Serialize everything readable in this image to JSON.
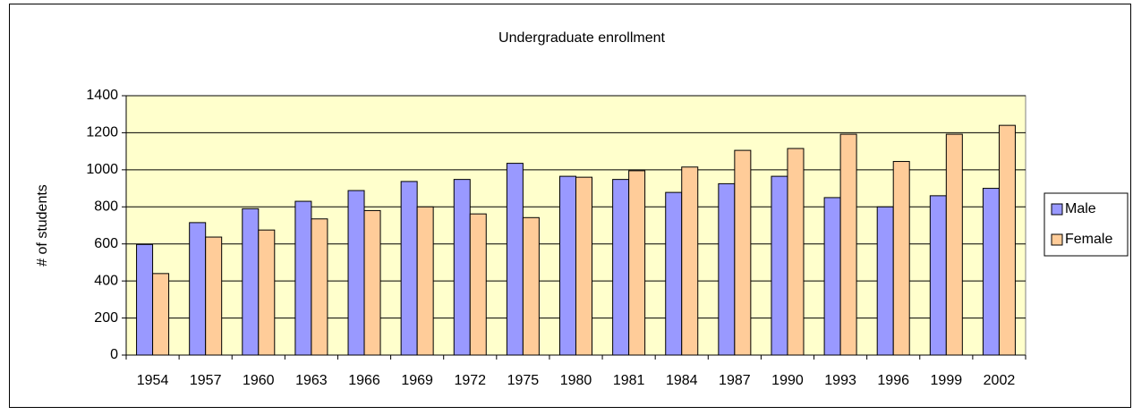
{
  "chart_data": {
    "type": "bar",
    "title": "Undergraduate enrollment",
    "y_label": "# of students",
    "categories": [
      "1954",
      "1957",
      "1960",
      "1963",
      "1966",
      "1969",
      "1972",
      "1975",
      "1980",
      "1981",
      "1984",
      "1987",
      "1990",
      "1993",
      "1996",
      "1999",
      "2002"
    ],
    "series": [
      {
        "name": "Male",
        "color": "#9999ff",
        "values": [
          597,
          715,
          790,
          830,
          888,
          937,
          948,
          1035,
          965,
          948,
          878,
          925,
          965,
          850,
          800,
          860,
          900
        ]
      },
      {
        "name": "Female",
        "color": "#ffcc99",
        "values": [
          440,
          637,
          675,
          735,
          780,
          800,
          762,
          742,
          960,
          995,
          1015,
          1105,
          1115,
          1192,
          1045,
          1192,
          1240
        ]
      }
    ],
    "ylim": [
      0,
      1400
    ],
    "yticks": [
      0,
      200,
      400,
      600,
      800,
      1000,
      1200,
      1400
    ],
    "grid": true,
    "plot_background": "#ffffcc",
    "legend": "right"
  }
}
